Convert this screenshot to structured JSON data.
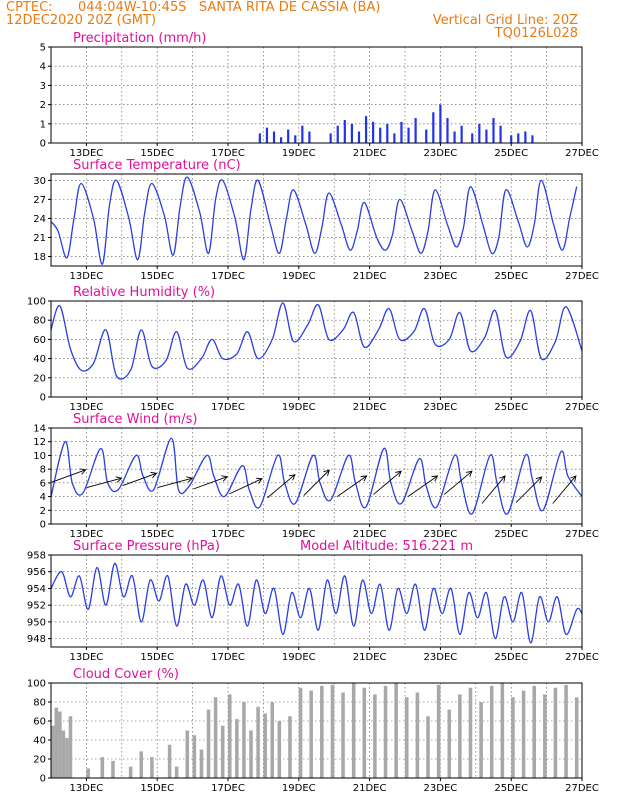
{
  "header": {
    "source": "CPTEC:",
    "location": "044:04W-10:45S   SANTA RITA DE CASSIA (BA)",
    "run": "12DEC2020 20Z (GMT)",
    "grid_note": "Vertical Grid Line: 20Z",
    "model": "TQ0126L028"
  },
  "x_labels": [
    "13DEC",
    "15DEC",
    "17DEC",
    "19DEC",
    "21DEC",
    "23DEC",
    "25DEC",
    "27DEC"
  ],
  "chart_data": [
    {
      "type": "bar",
      "title": "Precipitation (mm/h)",
      "ylim": [
        0,
        5
      ],
      "yticks": [
        0,
        1,
        2,
        3,
        4,
        5
      ],
      "color": "#2233ee",
      "x": [
        5.9,
        6.1,
        6.3,
        6.5,
        6.7,
        6.9,
        7.1,
        7.3,
        7.9,
        8.1,
        8.3,
        8.5,
        8.7,
        8.9,
        9.1,
        9.3,
        9.5,
        9.7,
        9.9,
        10.1,
        10.3,
        10.6,
        10.8,
        11.0,
        11.2,
        11.4,
        11.6,
        11.9,
        12.1,
        12.3,
        12.5,
        12.7,
        13.0,
        13.2,
        13.4,
        13.6
      ],
      "values": [
        0.5,
        0.8,
        0.6,
        0.3,
        0.7,
        0.4,
        0.9,
        0.6,
        0.5,
        0.9,
        1.2,
        1.0,
        0.6,
        1.4,
        1.1,
        0.8,
        1.0,
        0.5,
        1.1,
        0.8,
        1.3,
        0.7,
        1.6,
        2.0,
        1.3,
        0.6,
        0.9,
        0.5,
        1.0,
        0.7,
        1.3,
        0.9,
        0.4,
        0.5,
        0.6,
        0.4
      ]
    },
    {
      "type": "line",
      "title": "Surface Temperature (nC)",
      "ylim": [
        16.5,
        31
      ],
      "yticks": [
        18,
        21,
        24,
        27,
        30
      ],
      "color": "#2a3fe0",
      "x": [
        0,
        0.2,
        0.45,
        0.65,
        0.85,
        1.2,
        1.45,
        1.65,
        1.85,
        2.2,
        2.45,
        2.65,
        2.85,
        3.2,
        3.45,
        3.65,
        3.85,
        4.2,
        4.45,
        4.65,
        4.85,
        5.2,
        5.45,
        5.65,
        5.85,
        6.2,
        6.45,
        6.65,
        6.85,
        7.2,
        7.45,
        7.65,
        7.85,
        8.2,
        8.45,
        8.65,
        8.85,
        9.2,
        9.45,
        9.65,
        9.85,
        10.2,
        10.45,
        10.65,
        10.85,
        11.2,
        11.45,
        11.65,
        11.85,
        12.2,
        12.45,
        12.65,
        12.85,
        13.2,
        13.45,
        13.65,
        13.85,
        14.2,
        14.45,
        14.65,
        14.85
      ],
      "values": [
        23.5,
        22.0,
        17.8,
        24.0,
        29.5,
        24.0,
        16.8,
        26.0,
        30.0,
        24.0,
        17.5,
        25.0,
        29.5,
        24.5,
        18.2,
        26.0,
        30.5,
        25.0,
        18.5,
        27.0,
        30.0,
        24.0,
        17.5,
        25.5,
        30.0,
        23.0,
        18.5,
        24.0,
        28.5,
        23.0,
        18.5,
        22.5,
        28.0,
        23.0,
        19.0,
        22.0,
        26.5,
        21.0,
        19.0,
        21.5,
        27.0,
        22.0,
        18.5,
        22.0,
        28.5,
        23.0,
        19.5,
        22.5,
        29.0,
        23.0,
        18.5,
        21.0,
        28.5,
        23.5,
        19.5,
        23.0,
        30.0,
        23.0,
        19.0,
        24.0,
        29.0
      ]
    },
    {
      "type": "line",
      "title": "Relative Humidity (%)",
      "ylim": [
        0,
        100
      ],
      "yticks": [
        0,
        20,
        40,
        60,
        80,
        100
      ],
      "color": "#2a3fe0",
      "x": [
        0,
        0.25,
        0.55,
        0.85,
        1.2,
        1.55,
        1.85,
        2.25,
        2.55,
        2.85,
        3.25,
        3.55,
        3.85,
        4.25,
        4.55,
        4.85,
        5.25,
        5.55,
        5.85,
        6.25,
        6.55,
        6.85,
        7.25,
        7.55,
        7.85,
        8.25,
        8.55,
        8.85,
        9.25,
        9.55,
        9.85,
        10.25,
        10.55,
        10.85,
        11.25,
        11.55,
        11.85,
        12.25,
        12.55,
        12.85,
        13.25,
        13.55,
        13.85,
        14.25,
        14.55,
        15.0
      ],
      "values": [
        70,
        95,
        50,
        28,
        35,
        70,
        22,
        28,
        70,
        32,
        38,
        68,
        30,
        40,
        60,
        40,
        45,
        68,
        40,
        60,
        98,
        58,
        75,
        96,
        60,
        70,
        88,
        52,
        70,
        92,
        60,
        68,
        92,
        55,
        60,
        88,
        48,
        62,
        90,
        42,
        58,
        90,
        40,
        58,
        94,
        48
      ]
    },
    {
      "type": "line",
      "title": "Surface Wind (m/s)",
      "ylim": [
        0,
        14
      ],
      "yticks": [
        0,
        2,
        4,
        6,
        8,
        10,
        12,
        14
      ],
      "color": "#2a3fe0",
      "x": [
        0,
        0.4,
        0.6,
        0.9,
        1.4,
        1.6,
        1.9,
        2.4,
        2.6,
        2.9,
        3.4,
        3.6,
        3.9,
        4.4,
        4.6,
        4.9,
        5.4,
        5.6,
        5.9,
        6.4,
        6.6,
        6.9,
        7.4,
        7.6,
        7.9,
        8.4,
        8.6,
        8.9,
        9.4,
        9.6,
        9.9,
        10.4,
        10.6,
        10.9,
        11.4,
        11.6,
        11.9,
        12.4,
        12.6,
        12.9,
        13.4,
        13.6,
        13.9,
        14.4,
        14.6,
        15.0
      ],
      "values": [
        4.0,
        12.0,
        6.0,
        4.5,
        11.0,
        6.0,
        5.0,
        10.0,
        7.0,
        5.0,
        12.5,
        5.0,
        5.5,
        10.0,
        7.0,
        4.0,
        8.5,
        5.0,
        2.5,
        10.0,
        6.0,
        3.0,
        10.0,
        6.0,
        3.5,
        10.0,
        6.0,
        2.5,
        11.0,
        6.0,
        3.0,
        9.5,
        5.5,
        2.5,
        10.0,
        6.0,
        1.5,
        10.0,
        6.0,
        1.5,
        10.0,
        6.5,
        2.0,
        10.5,
        7.0,
        4.0
      ]
    },
    {
      "type": "line",
      "title": "Surface Pressure (hPa)",
      "annotation": "Model Altitude: 516.221  m",
      "ylim": [
        947,
        958
      ],
      "yticks": [
        948,
        950,
        952,
        954,
        956,
        958
      ],
      "color": "#2a3fe0",
      "x": [
        0,
        0.3,
        0.55,
        0.8,
        1.05,
        1.3,
        1.55,
        1.8,
        2.05,
        2.3,
        2.55,
        2.8,
        3.05,
        3.3,
        3.55,
        3.8,
        4.05,
        4.3,
        4.55,
        4.8,
        5.05,
        5.3,
        5.55,
        5.8,
        6.05,
        6.3,
        6.55,
        6.8,
        7.05,
        7.3,
        7.55,
        7.8,
        8.05,
        8.3,
        8.55,
        8.8,
        9.05,
        9.3,
        9.55,
        9.8,
        10.05,
        10.3,
        10.55,
        10.8,
        11.05,
        11.3,
        11.55,
        11.8,
        12.05,
        12.3,
        12.55,
        12.8,
        13.05,
        13.3,
        13.55,
        13.8,
        14.05,
        14.3,
        14.55,
        14.85,
        15.0
      ],
      "values": [
        954.0,
        956.0,
        953.0,
        955.5,
        951.5,
        956.5,
        952.0,
        957.0,
        953.0,
        955.5,
        950.0,
        955.0,
        952.5,
        955.5,
        949.5,
        954.5,
        952.0,
        955.0,
        950.5,
        955.5,
        952.0,
        954.5,
        949.5,
        955.0,
        951.0,
        954.0,
        948.5,
        953.5,
        950.5,
        954.0,
        949.0,
        955.0,
        951.0,
        955.5,
        949.5,
        955.0,
        951.0,
        954.5,
        949.0,
        954.0,
        951.0,
        954.5,
        949.0,
        954.0,
        951.0,
        954.0,
        948.5,
        953.5,
        950.5,
        953.5,
        948.0,
        953.0,
        950.0,
        953.5,
        947.5,
        953.0,
        950.0,
        953.0,
        948.5,
        951.5,
        951.0
      ]
    },
    {
      "type": "bar",
      "title": "Cloud Cover (%)",
      "ylim": [
        0,
        100
      ],
      "yticks": [
        0,
        20,
        40,
        60,
        80,
        100
      ],
      "color": "#a8a8a8",
      "x": [
        0.05,
        0.15,
        0.25,
        0.35,
        0.45,
        0.55,
        1.05,
        1.45,
        1.75,
        2.25,
        2.55,
        2.85,
        3.35,
        3.55,
        3.85,
        4.05,
        4.25,
        4.45,
        4.65,
        4.85,
        5.05,
        5.25,
        5.45,
        5.65,
        5.85,
        6.05,
        6.25,
        6.45,
        6.75,
        7.05,
        7.35,
        7.65,
        7.95,
        8.25,
        8.55,
        8.85,
        9.15,
        9.45,
        9.75,
        10.05,
        10.35,
        10.65,
        10.95,
        11.25,
        11.55,
        11.85,
        12.15,
        12.45,
        12.75,
        13.05,
        13.35,
        13.65,
        13.95,
        14.25,
        14.55,
        14.85
      ],
      "values": [
        55,
        74,
        70,
        50,
        42,
        65,
        10,
        22,
        18,
        12,
        28,
        22,
        35,
        12,
        50,
        45,
        30,
        72,
        85,
        55,
        88,
        62,
        80,
        50,
        75,
        68,
        80,
        60,
        65,
        95,
        92,
        97,
        98,
        90,
        100,
        95,
        88,
        97,
        100,
        85,
        90,
        65,
        98,
        72,
        88,
        95,
        80,
        97,
        100,
        85,
        92,
        97,
        88,
        95,
        98,
        85
      ]
    },
    {
      "type": "wind-barbs",
      "label": "Surface Wind Vectors",
      "x": [
        0.5,
        1.5,
        2.5,
        3.5,
        4.5,
        5.5,
        6.5,
        7.5,
        8.5,
        9.5,
        10.5,
        11.5,
        12.5,
        13.5,
        14.5
      ],
      "speed": [
        7,
        6,
        6.5,
        6,
        6,
        5.5,
        5.5,
        6,
        5.5,
        6,
        5.5,
        6,
        5,
        5,
        5
      ],
      "direction_deg": [
        250,
        255,
        250,
        255,
        250,
        245,
        230,
        225,
        235,
        230,
        235,
        230,
        220,
        225,
        220
      ]
    }
  ]
}
